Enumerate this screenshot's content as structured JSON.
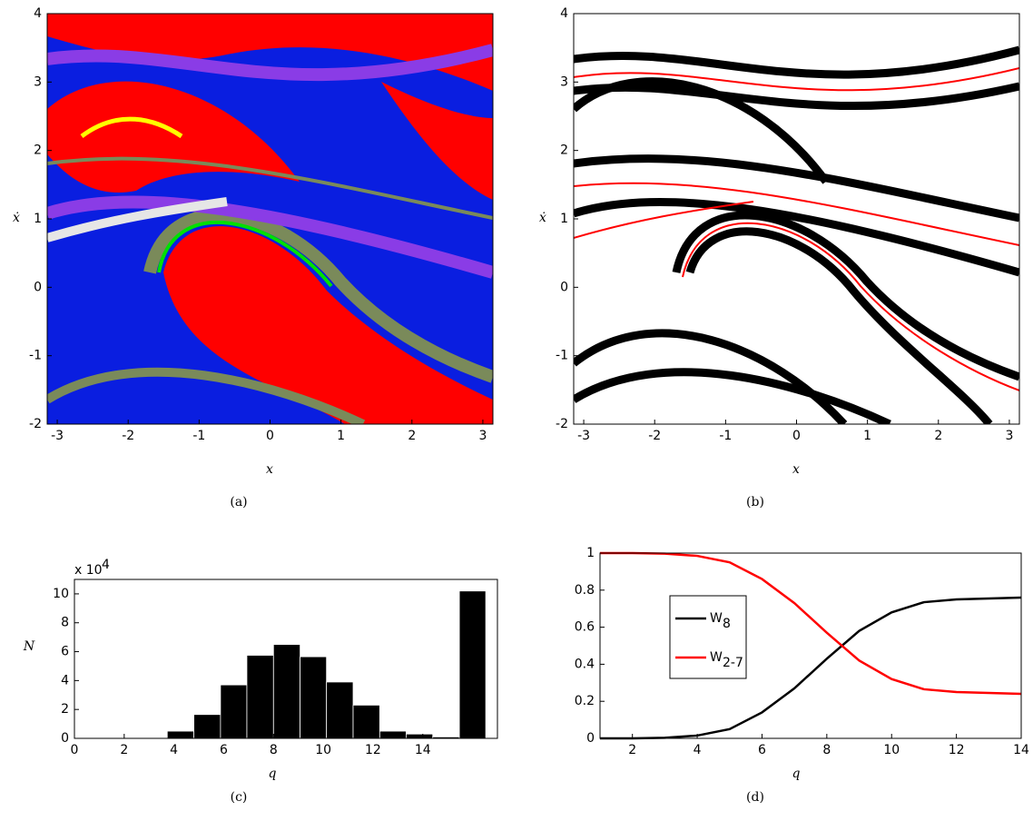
{
  "chart_data": [
    {
      "type": "basin",
      "panel": "(a)",
      "xlabel": "x",
      "ylabel": "ẋ",
      "xlim": [
        -3.1416,
        3.1416
      ],
      "ylim": [
        -2,
        4
      ],
      "xticks": [
        -3,
        -2,
        -1,
        0,
        1,
        2,
        3
      ],
      "yticks": [
        -2,
        -1,
        0,
        1,
        2,
        3,
        4
      ]
    },
    {
      "type": "basin",
      "panel": "(b)",
      "xlabel": "x",
      "ylabel": "ẋ",
      "xlim": [
        -3.1416,
        3.1416
      ],
      "ylim": [
        -2,
        4
      ],
      "xticks": [
        -3,
        -2,
        -1,
        0,
        1,
        2,
        3
      ],
      "yticks": [
        -2,
        -1,
        0,
        1,
        2,
        3,
        4
      ]
    },
    {
      "type": "histogram",
      "panel": "(c)",
      "xlabel": "q",
      "ylabel": "N",
      "scale_label": "x 10",
      "scale_exponent": "4",
      "color": "#000000",
      "bins": [
        0.53,
        1.6,
        2.66,
        3.73,
        4.8,
        5.87,
        6.93,
        8.0,
        9.07,
        10.13,
        11.2,
        12.27,
        13.33,
        14.4,
        15.47,
        16.53
      ],
      "counts": [
        0,
        0,
        0.05,
        0.5,
        1.65,
        3.7,
        5.75,
        6.5,
        5.65,
        3.9,
        2.3,
        0.5,
        0.3,
        0.1,
        10.2
      ],
      "xlim": [
        0,
        17
      ],
      "ylim": [
        0,
        11
      ],
      "xticks": [
        0,
        2,
        4,
        6,
        8,
        10,
        12,
        14
      ],
      "yticks": [
        0,
        2,
        4,
        6,
        8,
        10
      ]
    },
    {
      "type": "line",
      "panel": "(d)",
      "xlabel": "q",
      "legend_loc": "center left",
      "x": [
        1,
        2,
        3,
        4,
        5,
        6,
        7,
        8,
        9,
        10,
        11,
        12,
        13,
        14
      ],
      "series": [
        {
          "name": "W",
          "name_sub": "8",
          "color": "#000000",
          "values": [
            0,
            0,
            0.003,
            0.015,
            0.05,
            0.14,
            0.27,
            0.43,
            0.58,
            0.68,
            0.735,
            0.75,
            0.755,
            0.76
          ]
        },
        {
          "name": "W",
          "name_sub": "2-7",
          "color": "#ff0000",
          "values": [
            1,
            1,
            0.997,
            0.985,
            0.95,
            0.86,
            0.73,
            0.57,
            0.42,
            0.32,
            0.265,
            0.25,
            0.245,
            0.24
          ]
        }
      ],
      "xlim": [
        1,
        14
      ],
      "ylim": [
        0,
        1
      ],
      "xticks": [
        2,
        4,
        6,
        8,
        10,
        12,
        14
      ],
      "yticks": [
        0,
        0.2,
        0.4,
        0.6,
        0.8,
        1
      ]
    }
  ]
}
